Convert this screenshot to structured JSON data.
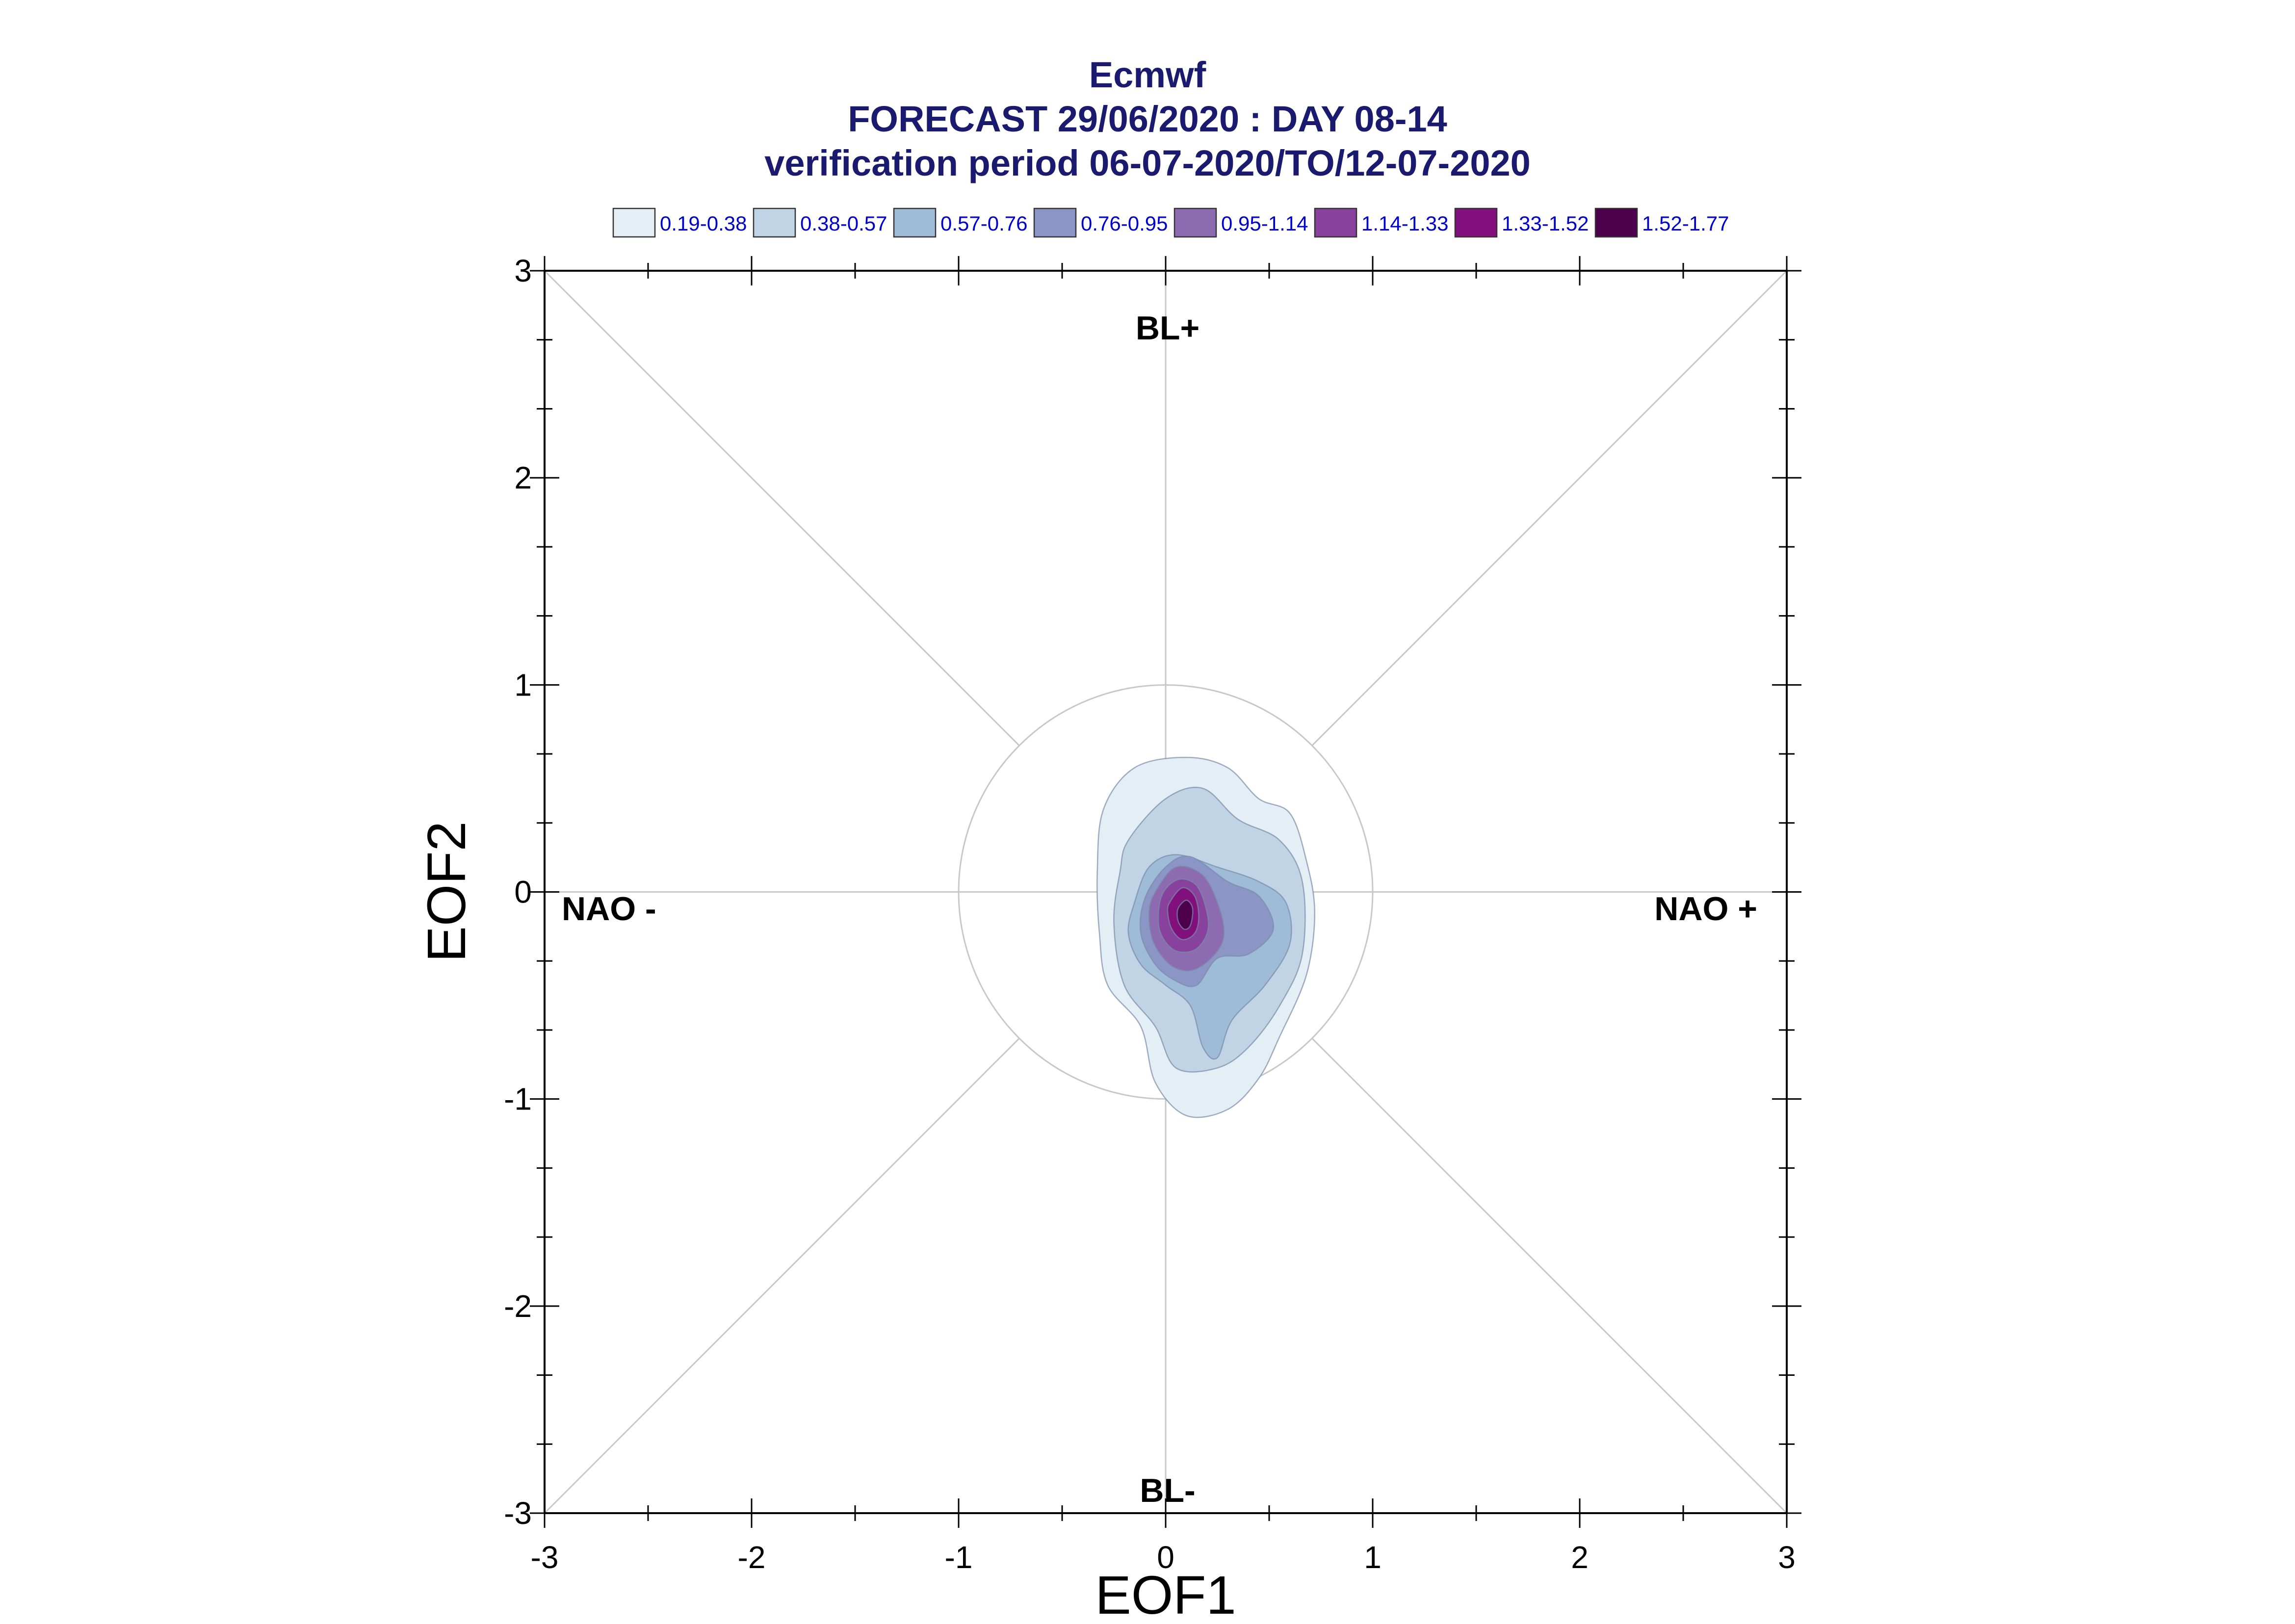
{
  "chart_data": {
    "type": "contour",
    "title": [
      "Ecmwf",
      "FORECAST 29/06/2020 : DAY 08-14",
      "verification period 06-07-2020/TO/12-07-2020"
    ],
    "xlabel": "EOF1",
    "ylabel": "EOF2",
    "xlim": [
      -3,
      3
    ],
    "ylim": [
      -3,
      3
    ],
    "xticks": [
      -3,
      -2,
      -1,
      0,
      1,
      2,
      3
    ],
    "yticks": [
      -3,
      -2,
      -1,
      0,
      1,
      2,
      3
    ],
    "xtick_labels": [
      "-3",
      "-2",
      "-1",
      "0",
      "1",
      "2",
      "3"
    ],
    "ytick_labels": [
      "-3",
      "-2",
      "-1",
      "0",
      "1",
      "2",
      "3"
    ],
    "reference_circle_radius": 1,
    "regime_labels": {
      "top": "BL+",
      "bottom": "BL-",
      "left": "NAO -",
      "right": "NAO +"
    },
    "legend": {
      "position": "top",
      "entries": [
        {
          "label": "0.19-0.38",
          "color": "#e3eef5"
        },
        {
          "label": "0.38-0.57",
          "color": "#c0d4e5"
        },
        {
          "label": "0.57-0.76",
          "color": "#9ebbd8"
        },
        {
          "label": "0.76-0.95",
          "color": "#8c96c6"
        },
        {
          "label": "0.95-1.14",
          "color": "#8c6bb1"
        },
        {
          "label": "1.14-1.33",
          "color": "#88419d"
        },
        {
          "label": "1.33-1.52",
          "color": "#810f7c"
        },
        {
          "label": "1.52-1.77",
          "color": "#4d004b"
        }
      ]
    },
    "contours": [
      {
        "level": "0.19-0.38",
        "polygon": [
          [
            -0.3,
            0.4
          ],
          [
            -0.15,
            0.6
          ],
          [
            0.1,
            0.65
          ],
          [
            0.3,
            0.6
          ],
          [
            0.45,
            0.45
          ],
          [
            0.6,
            0.38
          ],
          [
            0.68,
            0.15
          ],
          [
            0.72,
            -0.1
          ],
          [
            0.68,
            -0.4
          ],
          [
            0.55,
            -0.7
          ],
          [
            0.45,
            -0.9
          ],
          [
            0.3,
            -1.05
          ],
          [
            0.1,
            -1.08
          ],
          [
            -0.05,
            -0.92
          ],
          [
            -0.12,
            -0.65
          ],
          [
            -0.28,
            -0.45
          ],
          [
            -0.32,
            -0.2
          ],
          [
            -0.33,
            0.1
          ]
        ]
      },
      {
        "level": "0.38-0.57",
        "polygon": [
          [
            -0.18,
            0.25
          ],
          [
            0.0,
            0.45
          ],
          [
            0.18,
            0.5
          ],
          [
            0.35,
            0.35
          ],
          [
            0.55,
            0.25
          ],
          [
            0.66,
            0.05
          ],
          [
            0.66,
            -0.3
          ],
          [
            0.55,
            -0.55
          ],
          [
            0.4,
            -0.75
          ],
          [
            0.25,
            -0.85
          ],
          [
            0.05,
            -0.85
          ],
          [
            -0.05,
            -0.65
          ],
          [
            -0.2,
            -0.45
          ],
          [
            -0.25,
            -0.15
          ],
          [
            -0.22,
            0.1
          ]
        ]
      },
      {
        "level": "0.57-0.76",
        "polygon": [
          [
            -0.15,
            -0.05
          ],
          [
            -0.08,
            0.12
          ],
          [
            0.05,
            0.18
          ],
          [
            0.25,
            0.12
          ],
          [
            0.45,
            0.05
          ],
          [
            0.58,
            -0.05
          ],
          [
            0.6,
            -0.25
          ],
          [
            0.48,
            -0.45
          ],
          [
            0.32,
            -0.62
          ],
          [
            0.25,
            -0.8
          ],
          [
            0.18,
            -0.75
          ],
          [
            0.12,
            -0.55
          ],
          [
            0.0,
            -0.45
          ],
          [
            -0.12,
            -0.35
          ],
          [
            -0.18,
            -0.2
          ]
        ]
      },
      {
        "level": "0.76-0.95",
        "polygon": [
          [
            -0.1,
            -0.03
          ],
          [
            0.0,
            0.12
          ],
          [
            0.12,
            0.17
          ],
          [
            0.3,
            0.05
          ],
          [
            0.45,
            -0.02
          ],
          [
            0.52,
            -0.18
          ],
          [
            0.4,
            -0.3
          ],
          [
            0.25,
            -0.32
          ],
          [
            0.15,
            -0.45
          ],
          [
            0.05,
            -0.43
          ],
          [
            -0.05,
            -0.35
          ],
          [
            -0.12,
            -0.2
          ]
        ]
      },
      {
        "level": "0.95-1.14",
        "polygon": [
          [
            -0.05,
            0.0
          ],
          [
            0.05,
            0.12
          ],
          [
            0.18,
            0.08
          ],
          [
            0.26,
            -0.08
          ],
          [
            0.28,
            -0.22
          ],
          [
            0.22,
            -0.32
          ],
          [
            0.12,
            -0.38
          ],
          [
            0.02,
            -0.35
          ],
          [
            -0.06,
            -0.24
          ],
          [
            -0.08,
            -0.1
          ]
        ]
      },
      {
        "level": "1.14-1.33",
        "polygon": [
          [
            -0.02,
            -0.02
          ],
          [
            0.06,
            0.06
          ],
          [
            0.15,
            0.03
          ],
          [
            0.2,
            -0.1
          ],
          [
            0.2,
            -0.2
          ],
          [
            0.14,
            -0.28
          ],
          [
            0.04,
            -0.28
          ],
          [
            -0.03,
            -0.18
          ]
        ]
      },
      {
        "level": "1.33-1.52",
        "polygon": [
          [
            0.02,
            -0.05
          ],
          [
            0.08,
            0.02
          ],
          [
            0.14,
            -0.02
          ],
          [
            0.16,
            -0.12
          ],
          [
            0.14,
            -0.2
          ],
          [
            0.08,
            -0.23
          ],
          [
            0.03,
            -0.18
          ],
          [
            0.01,
            -0.1
          ]
        ]
      },
      {
        "level": "1.52-1.77",
        "polygon": [
          [
            0.06,
            -0.08
          ],
          [
            0.1,
            -0.04
          ],
          [
            0.13,
            -0.08
          ],
          [
            0.12,
            -0.16
          ],
          [
            0.09,
            -0.18
          ],
          [
            0.06,
            -0.14
          ]
        ]
      }
    ]
  }
}
